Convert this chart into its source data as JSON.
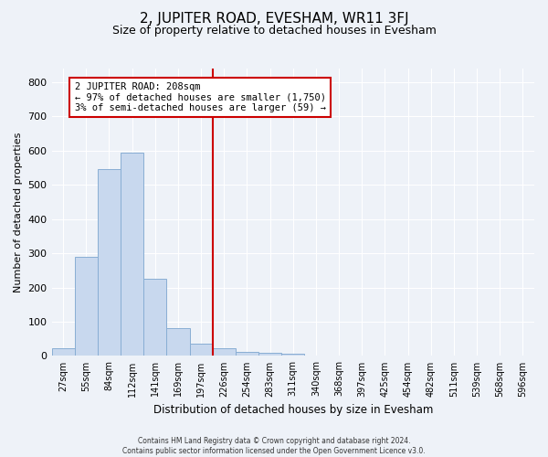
{
  "title": "2, JUPITER ROAD, EVESHAM, WR11 3FJ",
  "subtitle": "Size of property relative to detached houses in Evesham",
  "xlabel": "Distribution of detached houses by size in Evesham",
  "ylabel": "Number of detached properties",
  "footer_line1": "Contains HM Land Registry data © Crown copyright and database right 2024.",
  "footer_line2": "Contains public sector information licensed under the Open Government Licence v3.0.",
  "bar_labels": [
    "27sqm",
    "55sqm",
    "84sqm",
    "112sqm",
    "141sqm",
    "169sqm",
    "197sqm",
    "226sqm",
    "254sqm",
    "283sqm",
    "311sqm",
    "340sqm",
    "368sqm",
    "397sqm",
    "425sqm",
    "454sqm",
    "482sqm",
    "511sqm",
    "539sqm",
    "568sqm",
    "596sqm"
  ],
  "bar_values": [
    22,
    290,
    545,
    595,
    225,
    80,
    35,
    22,
    12,
    10,
    7,
    0,
    0,
    0,
    0,
    0,
    0,
    0,
    0,
    0,
    0
  ],
  "bar_color": "#c8d8ee",
  "bar_edge_color": "#89aed4",
  "vline_x_index": 7,
  "vline_color": "#cc0000",
  "annotation_text": "2 JUPITER ROAD: 208sqm\n← 97% of detached houses are smaller (1,750)\n3% of semi-detached houses are larger (59) →",
  "annotation_box_color": "white",
  "annotation_box_edge": "#cc0000",
  "ylim": [
    0,
    840
  ],
  "yticks": [
    0,
    100,
    200,
    300,
    400,
    500,
    600,
    700,
    800
  ],
  "background_color": "#eef2f8",
  "plot_background": "#eef2f8",
  "grid_color": "white",
  "title_fontsize": 11,
  "subtitle_fontsize": 9,
  "figsize": [
    6.0,
    5.0
  ],
  "dpi": 100
}
